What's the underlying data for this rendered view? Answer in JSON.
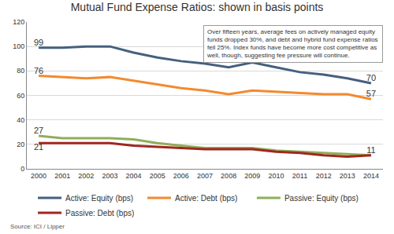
{
  "chart_data": {
    "type": "line",
    "title": "Mutual Fund Expense Ratios: shown in basis points",
    "annotation": "Over fifteen years, average fees on actively managed equity funds dropped 30%, and debt and hybrid fund expense ratios fell 25%. Index funds have become more cost competitive as well, though, suggesting fee pressure will continue.",
    "source": "Source: ICI / Lipper",
    "categories": [
      "2000",
      "2001",
      "2002",
      "2003",
      "2004",
      "2005",
      "2006",
      "2007",
      "2008",
      "2009",
      "2010",
      "2011",
      "2012",
      "2013",
      "2014"
    ],
    "series": [
      {
        "name": "Active: Equity (bps)",
        "color": "#44607e",
        "values": [
          99,
          99,
          100,
          100,
          95,
          91,
          88,
          86,
          83,
          87,
          83,
          79,
          77,
          74,
          70
        ],
        "value_labels": [
          "99",
          null,
          null,
          null,
          null,
          null,
          null,
          null,
          null,
          null,
          null,
          null,
          null,
          null,
          "70"
        ]
      },
      {
        "name": "Active: Debt (bps)",
        "color": "#f28a30",
        "values": [
          76,
          75,
          74,
          75,
          72,
          69,
          66,
          64,
          61,
          64,
          63,
          62,
          61,
          61,
          57
        ],
        "value_labels": [
          "76",
          null,
          null,
          null,
          null,
          null,
          null,
          null,
          null,
          null,
          null,
          null,
          null,
          null,
          "57"
        ]
      },
      {
        "name": "Passive: Equity (bps)",
        "color": "#8fae5a",
        "values": [
          27,
          25,
          25,
          25,
          24,
          21,
          19,
          17,
          17,
          17,
          15,
          14,
          13,
          12,
          11
        ],
        "value_labels": [
          "27",
          null,
          null,
          null,
          null,
          null,
          null,
          null,
          null,
          null,
          null,
          null,
          null,
          null,
          "11"
        ]
      },
      {
        "name": "Passive: Debt (bps)",
        "color": "#a0271f",
        "values": [
          21,
          21,
          21,
          21,
          19,
          18,
          17,
          16,
          16,
          16,
          14,
          13,
          11,
          10,
          11
        ],
        "value_labels": [
          "21",
          null,
          null,
          null,
          null,
          null,
          null,
          null,
          null,
          null,
          null,
          null,
          null,
          null,
          null
        ]
      }
    ],
    "ylim": [
      0,
      120
    ],
    "yticks": [
      0,
      20,
      40,
      60,
      80,
      100,
      120
    ],
    "grid": true,
    "legend": "bottom"
  }
}
